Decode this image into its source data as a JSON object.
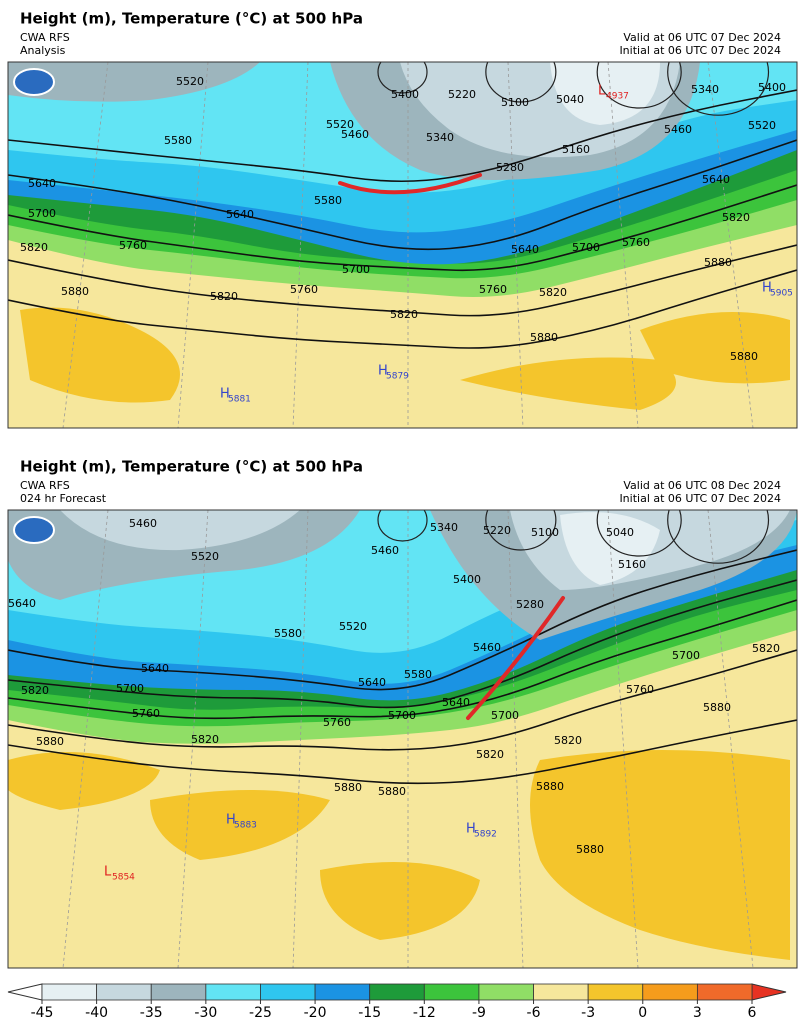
{
  "panels": [
    {
      "title": "Height (m), Temperature (°C) at 500 hPa",
      "model": "CWA RFS",
      "kind": "Analysis",
      "valid": "Valid at 06 UTC 07 Dec 2024",
      "initial": "Initial at 06 UTC 07 Dec 2024",
      "contour_labels": [
        5520,
        5580,
        5640,
        5700,
        5760,
        5820,
        5880,
        5640,
        5580,
        5520,
        5460,
        5400,
        5340,
        5220,
        5100,
        5040,
        5160,
        5280,
        5340,
        5400,
        5460,
        5520,
        5640,
        5700,
        5760,
        5820,
        5820,
        5640,
        5700,
        5760,
        5820,
        5880,
        5760,
        5820,
        5880,
        5880
      ],
      "centers": [
        {
          "letter": "L",
          "value": 4937
        },
        {
          "letter": "H",
          "value": 5879
        },
        {
          "letter": "H",
          "value": 5881
        },
        {
          "letter": "H",
          "value": 5905
        }
      ]
    },
    {
      "title": "Height (m), Temperature (°C) at 500 hPa",
      "model": "CWA RFS",
      "kind": "024 hr Forecast",
      "valid": "Valid at 06 UTC 08 Dec 2024",
      "initial": "Initial at 06 UTC 07 Dec 2024",
      "contour_labels": [
        5460,
        5520,
        5640,
        5460,
        5340,
        5220,
        5100,
        5040,
        5160,
        5400,
        5280,
        5460,
        5580,
        5520,
        5580,
        5640,
        5640,
        5700,
        5640,
        5700,
        5760,
        5820,
        5880,
        5760,
        5700,
        5820,
        5820,
        5820,
        5760,
        5700,
        5820,
        5880,
        5880,
        5880,
        5880,
        5880
      ],
      "centers": [
        {
          "letter": "H",
          "value": 5883
        },
        {
          "letter": "H",
          "value": 5892
        },
        {
          "letter": "L",
          "value": 5854
        }
      ]
    }
  ],
  "colorbar": {
    "ticks": [
      -45,
      -40,
      -35,
      -30,
      -25,
      -20,
      -15,
      -12,
      -9,
      -6,
      -3,
      0,
      3,
      6
    ],
    "colors": [
      "#ffffff",
      "#e6f0f3",
      "#c6d8df",
      "#9db5bd",
      "#62e4f4",
      "#2fc6ef",
      "#1b93e3",
      "#1e9b3a",
      "#3cc43c",
      "#90de66",
      "#f6e79c",
      "#f4c52c",
      "#f59c1c",
      "#f06a2a",
      "#e63222"
    ]
  }
}
